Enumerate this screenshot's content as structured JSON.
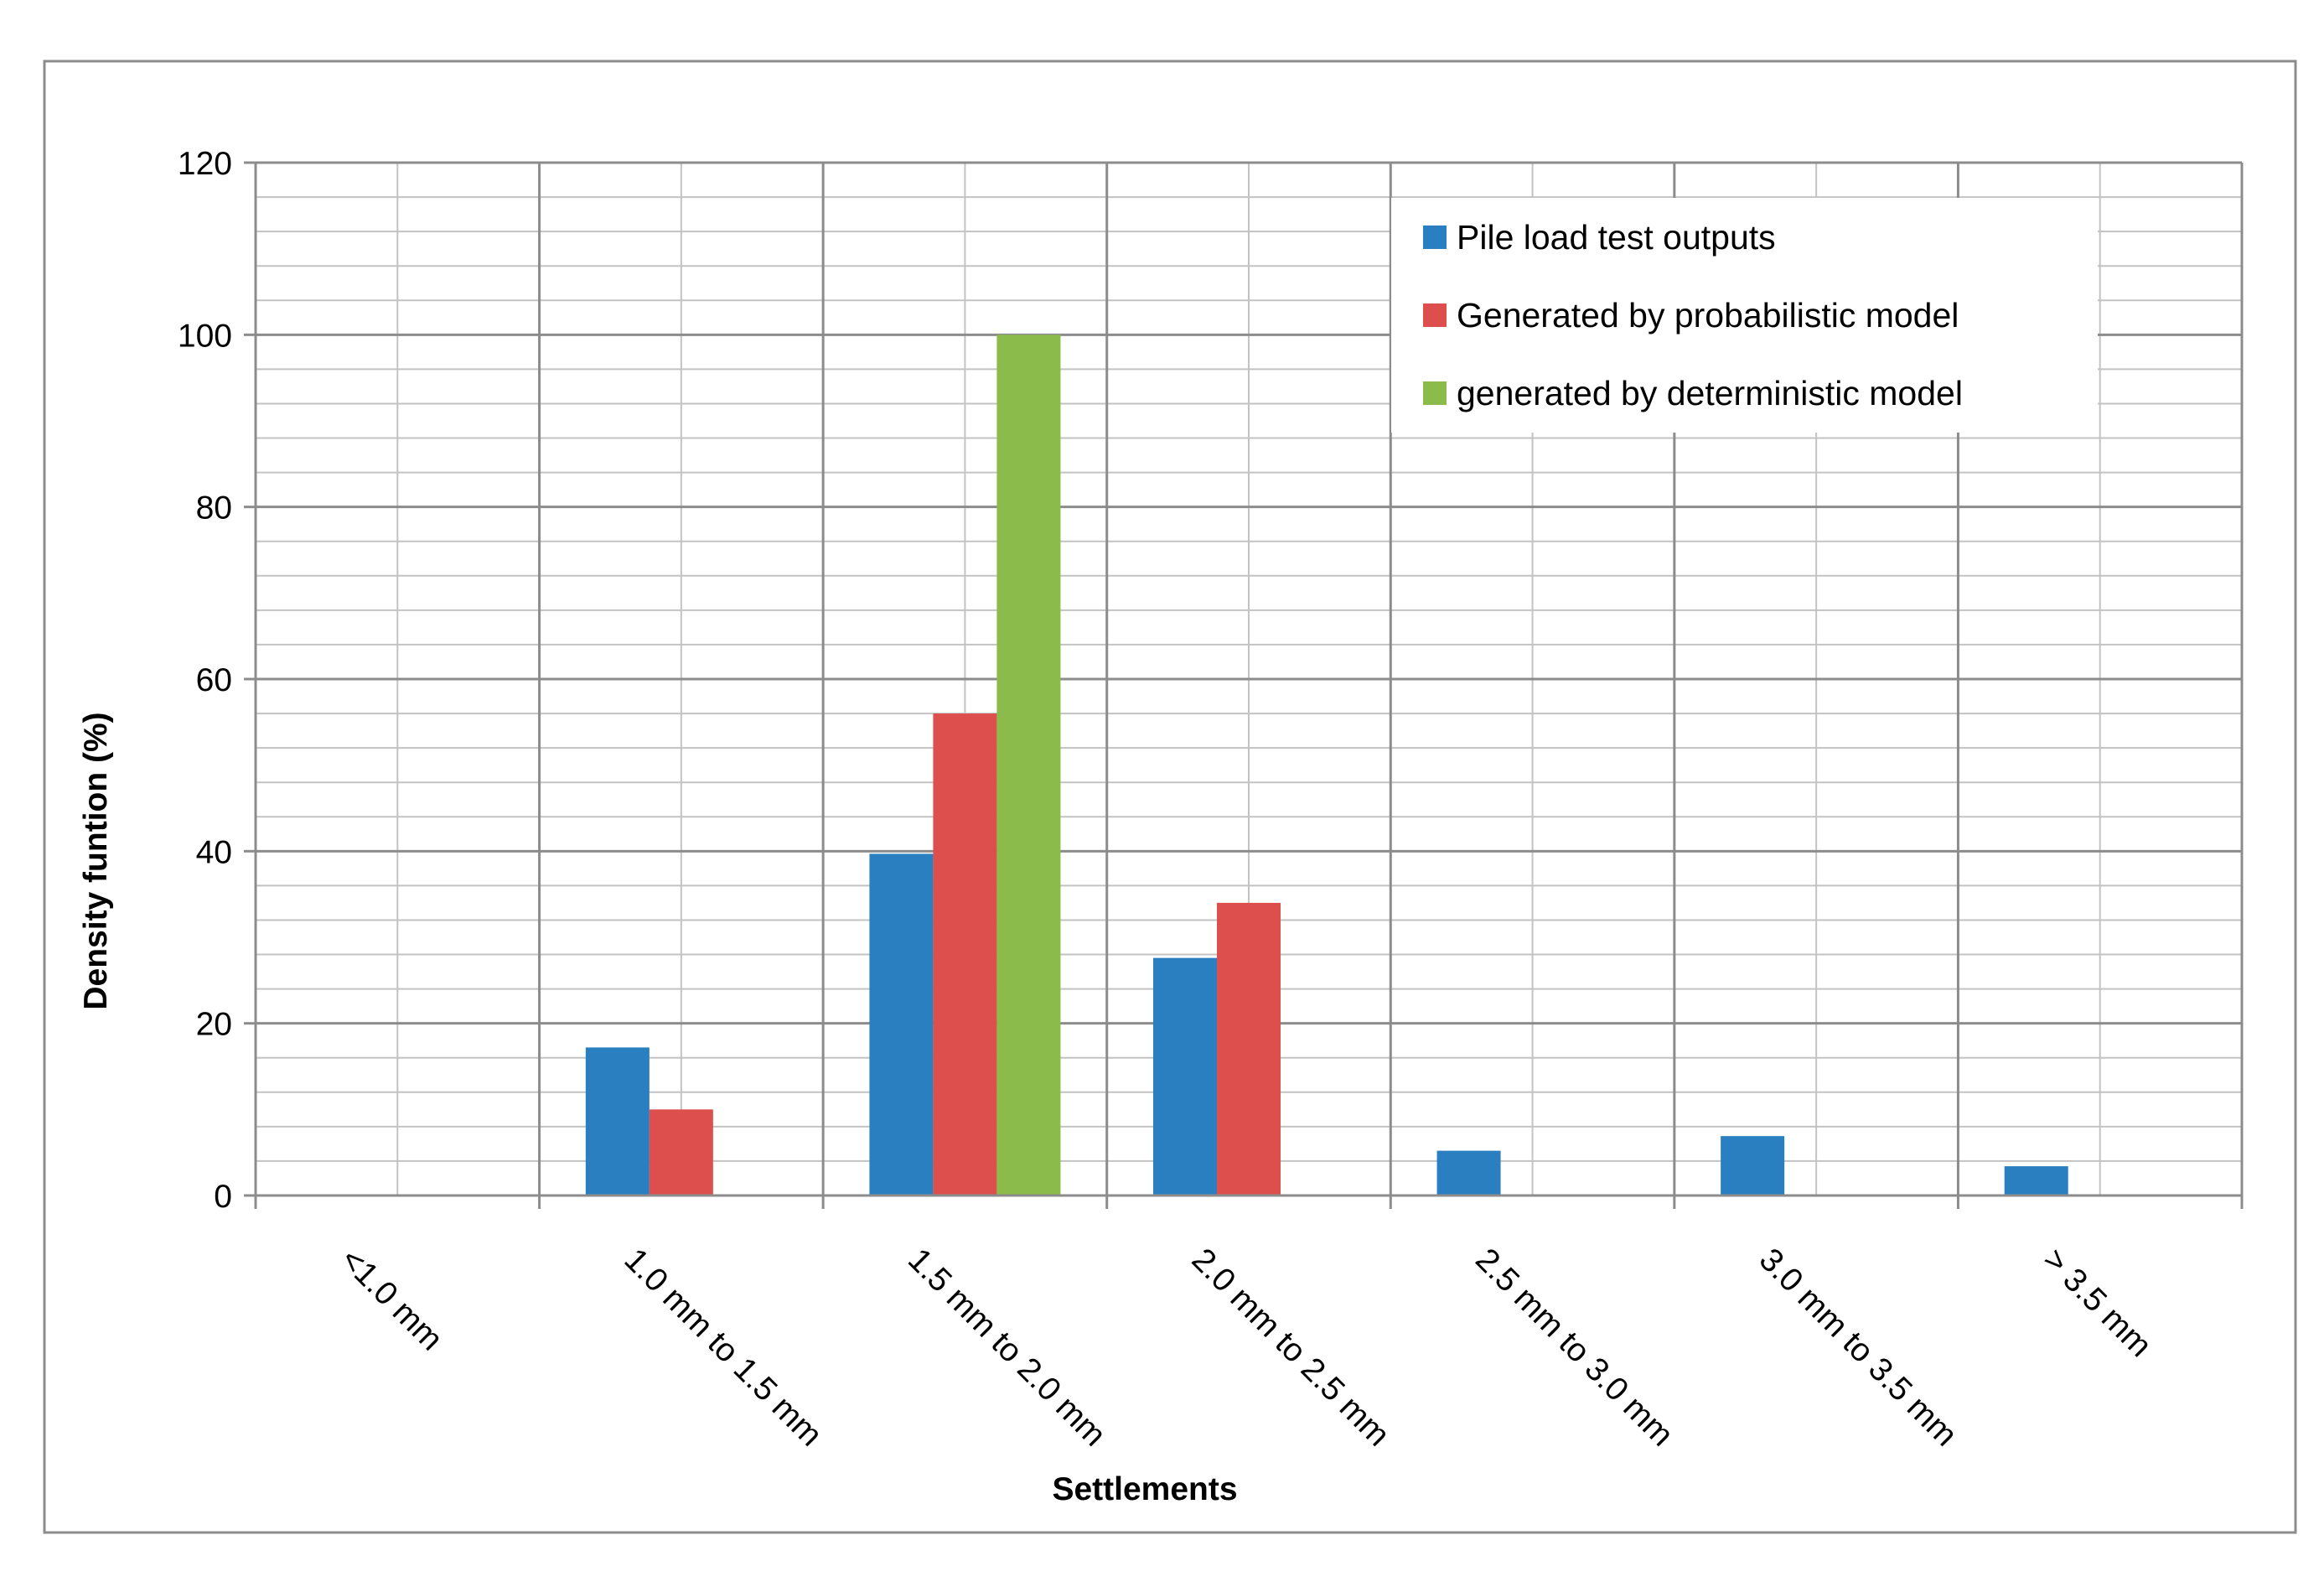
{
  "chart_data": {
    "type": "bar",
    "title": "",
    "xlabel": "Settlements",
    "ylabel": "Density funtion (%)",
    "ylim": [
      0,
      120
    ],
    "yticks": [
      0,
      20,
      40,
      60,
      80,
      100,
      120
    ],
    "grid": true,
    "legend_position": "top-right",
    "categories": [
      "<1.0 mm",
      "1.0 mm to 1.5 mm",
      "1.5 mm to 2.0 mm",
      "2.0 mm to 2.5 mm",
      "2.5 mm to 3.0 mm",
      "3.0 mm to 3.5 mm",
      "> 3.5 mm"
    ],
    "series": [
      {
        "name": "Pile load test outputs",
        "color": "#2a7fc1",
        "values": [
          0,
          17.2,
          39.7,
          27.6,
          5.2,
          6.9,
          3.4
        ]
      },
      {
        "name": "Generated by probabilistic model",
        "color": "#dd4f4c",
        "values": [
          0,
          10,
          56,
          34,
          0,
          0,
          0
        ]
      },
      {
        "name": "generated by deterministic model",
        "color": "#8bbb4a",
        "values": [
          0,
          0,
          100,
          0,
          0,
          0,
          0
        ]
      }
    ]
  }
}
